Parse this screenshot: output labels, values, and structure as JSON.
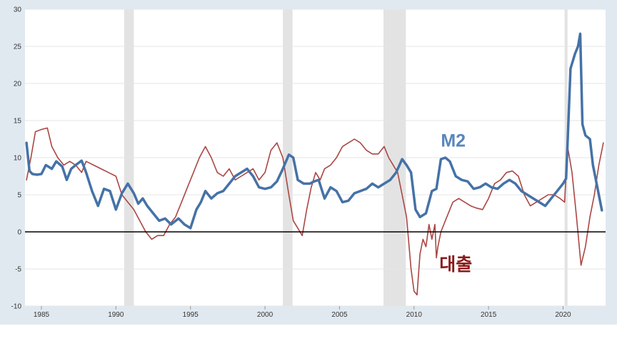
{
  "chart_data": {
    "type": "line",
    "title": "",
    "xlabel": "",
    "ylabel": "",
    "xlim": [
      1983.9,
      2022.85
    ],
    "ylim": [
      -10,
      30
    ],
    "grid": true,
    "y_ticks": [
      -10,
      -5,
      0,
      5,
      10,
      15,
      20,
      25,
      30
    ],
    "y_tick_labels": [
      "-10",
      "-5",
      "0",
      "5",
      "10",
      "15",
      "20",
      "25",
      "30"
    ],
    "x_ticks": [
      1985,
      1990,
      1995,
      2000,
      2005,
      2010,
      2015,
      2020
    ],
    "x_tick_labels": [
      "1985",
      "1990",
      "1995",
      "2000",
      "2005",
      "2010",
      "2015",
      "2020"
    ],
    "zero_line": 0,
    "recessions": [
      [
        1990.55,
        1991.2
      ],
      [
        2001.2,
        2001.85
      ],
      [
        2007.95,
        2009.45
      ],
      [
        2020.1,
        2020.3
      ]
    ],
    "annotations": [
      {
        "text": "M2",
        "series": "M2",
        "x": 2011.8,
        "y": 11.5,
        "color": "#5a86bb"
      },
      {
        "text": "대출",
        "series": "Loans",
        "x": 2011.7,
        "y": -5.2,
        "color": "#8b1a1a"
      }
    ],
    "series": [
      {
        "name": "M2",
        "color": "#4572a7",
        "x": [
          1984.0,
          1984.2,
          1984.4,
          1984.7,
          1985.0,
          1985.3,
          1985.7,
          1986.0,
          1986.4,
          1986.7,
          1987.0,
          1987.3,
          1987.7,
          1988.0,
          1988.4,
          1988.8,
          1989.2,
          1989.6,
          1990.0,
          1990.4,
          1990.8,
          1991.2,
          1991.5,
          1991.8,
          1992.1,
          1992.5,
          1992.9,
          1993.3,
          1993.7,
          1994.2,
          1994.6,
          1995.0,
          1995.4,
          1995.7,
          1996.0,
          1996.4,
          1996.8,
          1997.2,
          1997.6,
          1998.0,
          1998.4,
          1998.8,
          1999.2,
          1999.6,
          2000.0,
          2000.4,
          2000.8,
          2001.2,
          2001.6,
          2001.9,
          2002.2,
          2002.6,
          2003.0,
          2003.3,
          2003.6,
          2004.0,
          2004.4,
          2004.8,
          2005.2,
          2005.6,
          2006.0,
          2006.4,
          2006.8,
          2007.2,
          2007.6,
          2008.0,
          2008.4,
          2008.8,
          2009.2,
          2009.5,
          2009.8,
          2010.1,
          2010.4,
          2010.8,
          2011.2,
          2011.5,
          2011.8,
          2012.1,
          2012.4,
          2012.8,
          2013.2,
          2013.6,
          2014.0,
          2014.4,
          2014.8,
          2015.2,
          2015.6,
          2016.0,
          2016.4,
          2016.8,
          2017.2,
          2017.6,
          2018.0,
          2018.4,
          2018.8,
          2019.2,
          2019.6,
          2020.0,
          2020.2,
          2020.3,
          2020.5,
          2020.8,
          2021.0,
          2021.15,
          2021.3,
          2021.5,
          2021.8,
          2022.0,
          2022.3,
          2022.6
        ],
        "y": [
          12.0,
          8.2,
          7.8,
          7.7,
          7.8,
          9.0,
          8.5,
          9.5,
          8.8,
          7.0,
          8.5,
          9.0,
          9.6,
          8.0,
          5.5,
          3.5,
          5.8,
          5.5,
          3.0,
          5.2,
          6.5,
          5.2,
          3.8,
          4.5,
          3.5,
          2.5,
          1.5,
          1.8,
          1.0,
          1.8,
          1.0,
          0.5,
          3.0,
          4.0,
          5.5,
          4.5,
          5.2,
          5.5,
          6.5,
          7.5,
          8.0,
          8.5,
          7.5,
          6.0,
          5.8,
          6.0,
          6.8,
          8.5,
          10.4,
          10.0,
          7.0,
          6.5,
          6.5,
          6.8,
          7.0,
          4.5,
          6.0,
          5.5,
          4.0,
          4.2,
          5.2,
          5.5,
          5.8,
          6.5,
          6.0,
          6.5,
          7.0,
          8.0,
          9.8,
          9.0,
          8.0,
          3.0,
          2.0,
          2.5,
          5.5,
          5.8,
          9.8,
          10.0,
          9.5,
          7.5,
          7.0,
          6.8,
          5.8,
          6.0,
          6.5,
          6.0,
          5.8,
          6.5,
          7.0,
          6.5,
          5.5,
          5.0,
          4.5,
          4.0,
          3.5,
          4.5,
          5.5,
          6.5,
          7.2,
          12.0,
          22.0,
          24.0,
          25.0,
          26.7,
          14.5,
          13.0,
          12.5,
          9.0,
          6.0,
          2.9
        ]
      },
      {
        "name": "Loans",
        "color": "#aa4643",
        "x": [
          1984.0,
          1984.3,
          1984.6,
          1985.0,
          1985.4,
          1985.7,
          1986.1,
          1986.5,
          1986.9,
          1987.3,
          1987.7,
          1988.0,
          1988.5,
          1989.0,
          1989.5,
          1990.0,
          1990.4,
          1990.8,
          1991.2,
          1991.6,
          1992.0,
          1992.4,
          1992.8,
          1993.2,
          1993.6,
          1994.0,
          1994.4,
          1994.8,
          1995.2,
          1995.6,
          1996.0,
          1996.4,
          1996.8,
          1997.2,
          1997.6,
          1998.0,
          1998.4,
          1998.8,
          1999.2,
          1999.6,
          2000.0,
          2000.4,
          2000.8,
          2001.2,
          2001.6,
          2001.9,
          2002.2,
          2002.5,
          2002.8,
          2003.1,
          2003.4,
          2003.7,
          2004.0,
          2004.4,
          2004.8,
          2005.2,
          2005.6,
          2006.0,
          2006.4,
          2006.8,
          2007.2,
          2007.6,
          2008.0,
          2008.3,
          2008.6,
          2008.9,
          2009.2,
          2009.5,
          2009.8,
          2010.0,
          2010.2,
          2010.4,
          2010.6,
          2010.8,
          2011.0,
          2011.2,
          2011.4,
          2011.5,
          2011.6,
          2011.8,
          2012.2,
          2012.6,
          2013.0,
          2013.4,
          2013.8,
          2014.2,
          2014.6,
          2015.0,
          2015.4,
          2015.8,
          2016.2,
          2016.6,
          2017.0,
          2017.4,
          2017.8,
          2018.2,
          2018.6,
          2019.0,
          2019.4,
          2019.8,
          2020.1,
          2020.3,
          2020.6,
          2020.9,
          2021.2,
          2021.5,
          2021.8,
          2022.1,
          2022.4,
          2022.7
        ],
        "y": [
          7.0,
          10.0,
          13.5,
          13.8,
          14.0,
          11.5,
          10.0,
          9.0,
          9.5,
          9.0,
          8.0,
          9.5,
          9.0,
          8.5,
          8.0,
          7.5,
          5.0,
          4.0,
          3.0,
          1.5,
          0.0,
          -1.0,
          -0.5,
          -0.5,
          1.0,
          2.0,
          4.0,
          6.0,
          8.0,
          10.0,
          11.5,
          10.0,
          8.0,
          7.5,
          8.5,
          7.0,
          7.5,
          8.0,
          8.5,
          7.0,
          8.0,
          11.0,
          12.0,
          10.0,
          5.0,
          1.5,
          0.5,
          -0.5,
          3.0,
          6.0,
          8.0,
          7.0,
          8.5,
          9.0,
          10.0,
          11.5,
          12.0,
          12.5,
          12.0,
          11.0,
          10.5,
          10.5,
          11.5,
          10.0,
          9.0,
          8.0,
          5.0,
          2.0,
          -5.0,
          -8.0,
          -8.5,
          -3.0,
          -1.0,
          -2.0,
          1.0,
          -1.0,
          1.0,
          -3.5,
          -2.0,
          0.0,
          2.0,
          4.0,
          4.5,
          4.0,
          3.5,
          3.2,
          3.0,
          4.5,
          6.5,
          7.0,
          8.0,
          8.2,
          7.5,
          5.0,
          3.5,
          4.0,
          4.5,
          5.0,
          5.0,
          4.5,
          4.0,
          11.5,
          8.0,
          2.0,
          -4.5,
          -2.0,
          2.0,
          5.0,
          9.0,
          12.0
        ]
      }
    ]
  }
}
